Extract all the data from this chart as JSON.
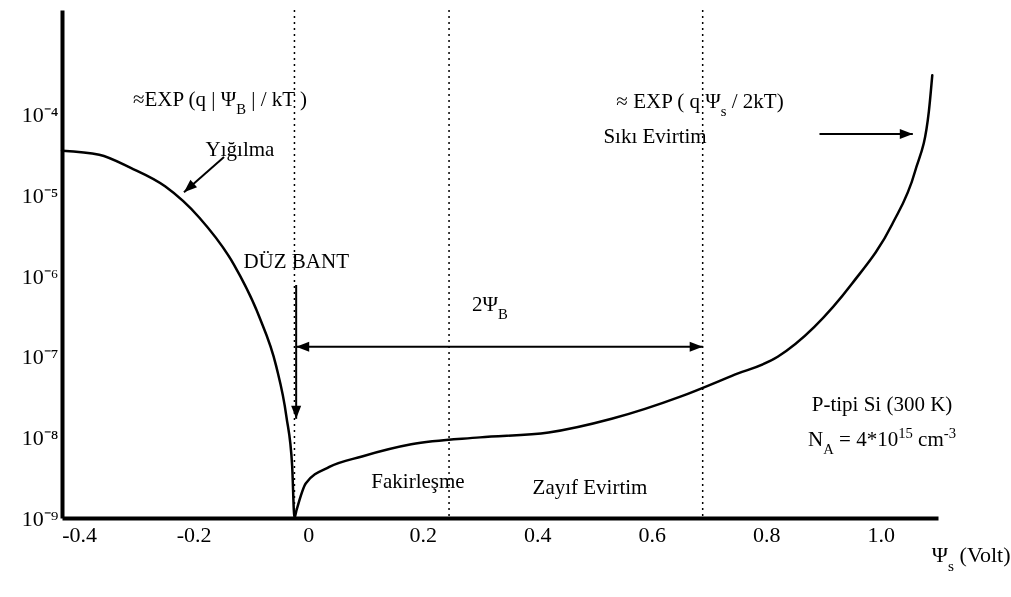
{
  "chart_data": {
    "type": "line",
    "xlabel": "Ψ$_{s}$ (Volt)",
    "series": [
      {
        "color": "#000000",
        "x": [
          -0.43,
          -0.365,
          -0.31,
          -0.25,
          -0.19,
          -0.13,
          -0.086,
          -0.056,
          -0.038,
          -0.028,
          -0.024,
          -0.021,
          -0.004,
          0.037,
          0.094,
          0.18,
          0.3,
          0.42,
          0.53,
          0.65,
          0.74,
          0.82,
          0.95,
          1.02,
          1.06,
          1.084,
          1.09
        ],
        "values": [
          3.6e-05,
          3.2e-05,
          2.2e-05,
          1.3e-05,
          5.3e-06,
          1.4e-06,
          3.2e-07,
          7.7e-08,
          1.8e-08,
          4.4e-09,
          1e-09,
          1.2e-09,
          2.7e-09,
          4.3e-09,
          5.8e-09,
          8.2e-09,
          1e-08,
          1.15e-08,
          1.7e-08,
          3.2e-08,
          5.8e-08,
          1e-07,
          8.1e-07,
          4.4e-06,
          2e-05,
          0.00011,
          0.00031
        ]
      }
    ],
    "xlim": [
      -0.43,
      1.1
    ],
    "ylim": [
      1e-09,
      0.002
    ],
    "xticks": [
      -0.4,
      -0.2,
      0,
      0.2,
      0.4,
      0.6,
      0.8,
      {
        "value": 1,
        "label": "1.0"
      }
    ],
    "yticks": [
      {
        "value": 1e-09,
        "label": "10⁻⁹"
      },
      {
        "value": 1e-08,
        "label": "10⁻⁸"
      },
      {
        "value": 1e-07,
        "label": "10⁻⁷"
      },
      {
        "value": 1e-06,
        "label": "10⁻⁶"
      },
      {
        "value": 1e-05,
        "label": "10⁻⁵"
      },
      {
        "value": 0.0001,
        "label": "10⁻⁴"
      }
    ],
    "log": "y",
    "grid": false,
    "marker": "none",
    "line_style": "solid",
    "ref_lines": [
      {
        "axis": "x",
        "value": -0.024,
        "line_style": "dotted",
        "color": "#000000"
      },
      {
        "axis": "x",
        "value": 0.246,
        "line_style": "dotted",
        "color": "#000000"
      },
      {
        "axis": "x",
        "value": 0.689,
        "line_style": "dotted",
        "color": "#000000"
      }
    ],
    "annotations": [
      "≈EXP (q | Ψ$_{B}$ | / kT )",
      "Yığılma",
      {
        "text": "DÜZ BANT",
        "x": -0.021,
        "y": 1.7e-08
      },
      "2Ψ$_{B}$",
      "Fakirleşme",
      "Zayıf Evirtim",
      "≈ EXP ( q Ψ$_{s}$ / 2kT)",
      "Sıkı Evirtim",
      "P-tipi Si (300 K)",
      "N$_{A}$ = 4*10$^{15}$ cm$^{-3}$"
    ]
  }
}
